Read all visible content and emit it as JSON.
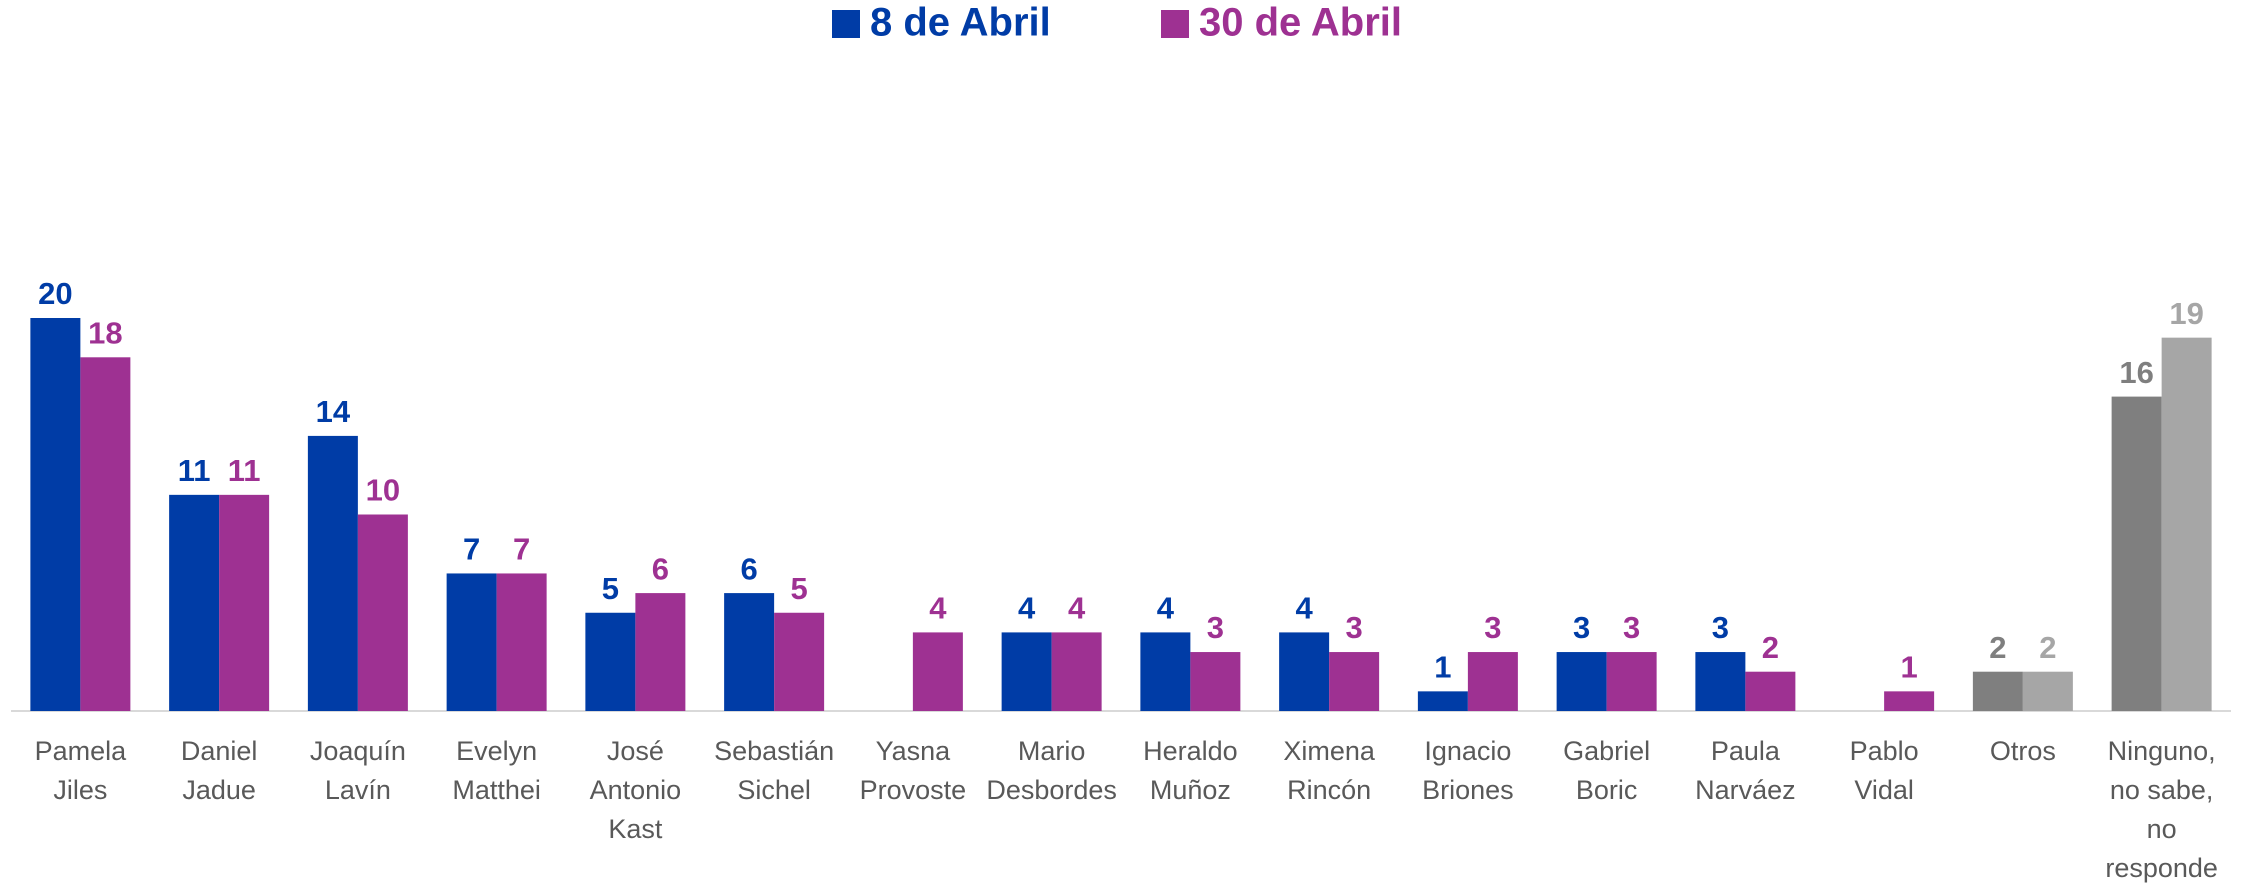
{
  "chart_data": {
    "type": "bar",
    "categories": [
      [
        "Pamela",
        "Jiles"
      ],
      [
        "Daniel",
        "Jadue"
      ],
      [
        "Joaquín",
        "Lavín"
      ],
      [
        "Evelyn",
        "Matthei"
      ],
      [
        "José",
        "Antonio",
        "Kast"
      ],
      [
        "Sebastián",
        "Sichel"
      ],
      [
        "Yasna",
        "Provoste"
      ],
      [
        "Mario",
        "Desbordes"
      ],
      [
        "Heraldo",
        "Muñoz"
      ],
      [
        "Ximena",
        "Rincón"
      ],
      [
        "Ignacio",
        "Briones"
      ],
      [
        "Gabriel",
        "Boric"
      ],
      [
        "Paula",
        "Narváez"
      ],
      [
        "Pablo",
        "Vidal"
      ],
      [
        "Otros"
      ],
      [
        "Ninguno,",
        "no sabe,",
        "no",
        "responde"
      ]
    ],
    "series": [
      {
        "name": "8 de Abril",
        "color": "#003ca6",
        "values": [
          20,
          11,
          14,
          7,
          5,
          6,
          null,
          4,
          4,
          4,
          1,
          3,
          3,
          null,
          2,
          16
        ],
        "colors": [
          "#003ca6",
          "#003ca6",
          "#003ca6",
          "#003ca6",
          "#003ca6",
          "#003ca6",
          "#003ca6",
          "#003ca6",
          "#003ca6",
          "#003ca6",
          "#003ca6",
          "#003ca6",
          "#003ca6",
          "#003ca6",
          "#7f7f7f",
          "#7f7f7f"
        ]
      },
      {
        "name": "30 de Abril",
        "color": "#9e3192",
        "values": [
          18,
          11,
          10,
          7,
          6,
          5,
          4,
          4,
          3,
          3,
          3,
          3,
          2,
          1,
          2,
          19
        ],
        "colors": [
          "#9e3192",
          "#9e3192",
          "#9e3192",
          "#9e3192",
          "#9e3192",
          "#9e3192",
          "#9e3192",
          "#9e3192",
          "#9e3192",
          "#9e3192",
          "#9e3192",
          "#9e3192",
          "#9e3192",
          "#9e3192",
          "#a6a6a6",
          "#a6a6a6"
        ]
      }
    ],
    "ylim": [
      0,
      20
    ],
    "legend": "top"
  }
}
